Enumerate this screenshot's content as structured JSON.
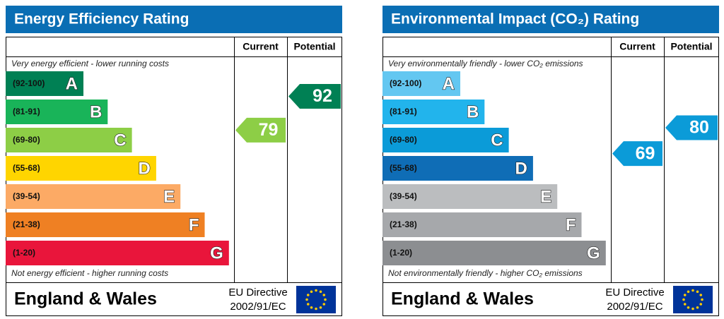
{
  "panels": [
    {
      "title": "Energy Efficiency Rating",
      "current_header": "Current",
      "potential_header": "Potential",
      "top_note": "Very energy efficient - lower running costs",
      "bottom_note": "Not energy efficient - higher running costs",
      "bands": [
        {
          "range": "(92-100)",
          "letter": "A",
          "color": "#008054"
        },
        {
          "range": "(81-91)",
          "letter": "B",
          "color": "#19b459"
        },
        {
          "range": "(69-80)",
          "letter": "C",
          "color": "#8dce46"
        },
        {
          "range": "(55-68)",
          "letter": "D",
          "color": "#ffd500"
        },
        {
          "range": "(39-54)",
          "letter": "E",
          "color": "#fcaa65"
        },
        {
          "range": "(21-38)",
          "letter": "F",
          "color": "#ef8023"
        },
        {
          "range": "(1-20)",
          "letter": "G",
          "color": "#e9153b"
        }
      ],
      "current": 79,
      "potential": 92,
      "region": "England & Wales",
      "directive_line1": "EU Directive",
      "directive_line2": "2002/91/EC"
    },
    {
      "title": "Environmental Impact (CO₂) Rating",
      "current_header": "Current",
      "potential_header": "Potential",
      "top_note": "Very environmentally friendly - lower CO₂ emissions",
      "bottom_note": "Not environmentally friendly - higher CO₂ emissions",
      "bands": [
        {
          "range": "(92-100)",
          "letter": "A",
          "color": "#63c7f1"
        },
        {
          "range": "(81-91)",
          "letter": "B",
          "color": "#22b4ec"
        },
        {
          "range": "(69-80)",
          "letter": "C",
          "color": "#0b9bd8"
        },
        {
          "range": "(55-68)",
          "letter": "D",
          "color": "#0f6db6"
        },
        {
          "range": "(39-54)",
          "letter": "E",
          "color": "#bbbdbf"
        },
        {
          "range": "(21-38)",
          "letter": "F",
          "color": "#a6a8ab"
        },
        {
          "range": "(1-20)",
          "letter": "G",
          "color": "#8c8e91"
        }
      ],
      "current": 69,
      "potential": 80,
      "region": "England & Wales",
      "directive_line1": "EU Directive",
      "directive_line2": "2002/91/EC"
    }
  ]
}
